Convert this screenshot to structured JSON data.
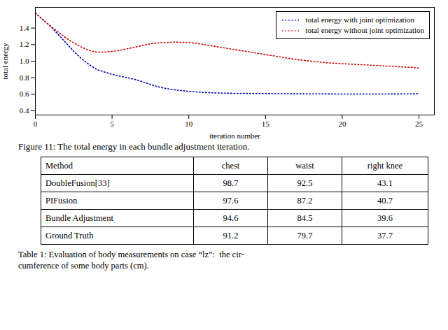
{
  "chart_data": {
    "type": "line",
    "caption": "Figure 11: The total energy in each bundle adjustment iteration.",
    "xlabel": "iteration number",
    "ylabel": "total energy",
    "x": [
      0,
      0.5,
      1,
      1.5,
      2,
      2.5,
      3,
      3.5,
      4,
      4.5,
      5,
      5.5,
      6,
      6.5,
      7,
      7.5,
      8,
      8.5,
      9,
      9.5,
      10,
      10.5,
      11,
      11.5,
      12,
      12.5,
      13,
      13.5,
      14,
      14.5,
      15,
      15.5,
      16,
      16.5,
      17,
      17.5,
      18,
      18.5,
      19,
      19.5,
      20,
      20.5,
      21,
      21.5,
      22,
      22.5,
      23,
      23.5,
      24,
      24.5,
      25
    ],
    "series": [
      {
        "name": "total energy with joint optimization",
        "color": "#0000bb",
        "line_style": "dotted",
        "values": [
          1.58,
          1.5,
          1.42,
          1.32,
          1.22,
          1.12,
          1.03,
          0.96,
          0.9,
          0.87,
          0.84,
          0.82,
          0.8,
          0.78,
          0.75,
          0.72,
          0.69,
          0.67,
          0.655,
          0.645,
          0.635,
          0.628,
          0.622,
          0.618,
          0.615,
          0.613,
          0.612,
          0.611,
          0.61,
          0.61,
          0.609,
          0.608,
          0.607,
          0.607,
          0.606,
          0.606,
          0.605,
          0.605,
          0.604,
          0.604,
          0.603,
          0.603,
          0.603,
          0.603,
          0.603,
          0.603,
          0.604,
          0.604,
          0.605,
          0.606,
          0.607
        ]
      },
      {
        "name": "total energy without joint optimization",
        "color": "#cc0000",
        "line_style": "dotted",
        "values": [
          1.58,
          1.5,
          1.42,
          1.35,
          1.28,
          1.22,
          1.17,
          1.13,
          1.11,
          1.11,
          1.12,
          1.13,
          1.15,
          1.17,
          1.19,
          1.21,
          1.22,
          1.225,
          1.23,
          1.228,
          1.225,
          1.215,
          1.2,
          1.185,
          1.17,
          1.155,
          1.14,
          1.125,
          1.11,
          1.095,
          1.08,
          1.065,
          1.05,
          1.035,
          1.02,
          1.01,
          1.0,
          0.99,
          0.98,
          0.975,
          0.97,
          0.965,
          0.96,
          0.955,
          0.95,
          0.945,
          0.94,
          0.935,
          0.93,
          0.925,
          0.915
        ]
      }
    ],
    "xlim": [
      0,
      26
    ],
    "xticks": [
      0,
      5,
      10,
      15,
      20,
      25
    ],
    "ylim": [
      0.35,
      1.65
    ],
    "yticks": [
      0.4,
      0.6,
      0.8,
      {
        "value": 1.0,
        "label": "1.0"
      },
      1.2,
      1.4
    ],
    "grid": false,
    "legend": "upper right",
    "table": {
      "columns": [
        "Method",
        "chest",
        "waist",
        "right knee"
      ],
      "rows": [
        [
          "DoubleFusion[33]",
          "98.7",
          "92.5",
          "43.1"
        ],
        [
          "PIFusion",
          "97.6",
          "87.2",
          "40.7"
        ],
        [
          "Bundle Adjustment",
          "94.6",
          "84.5",
          "39.6"
        ],
        [
          "Ground Truth",
          "91.2",
          "79.7",
          "37.7"
        ]
      ],
      "caption": "Table 1: Evaluation of body measurements on case “lz”:  the cir-\ncumference of some body parts (cm)."
    }
  }
}
